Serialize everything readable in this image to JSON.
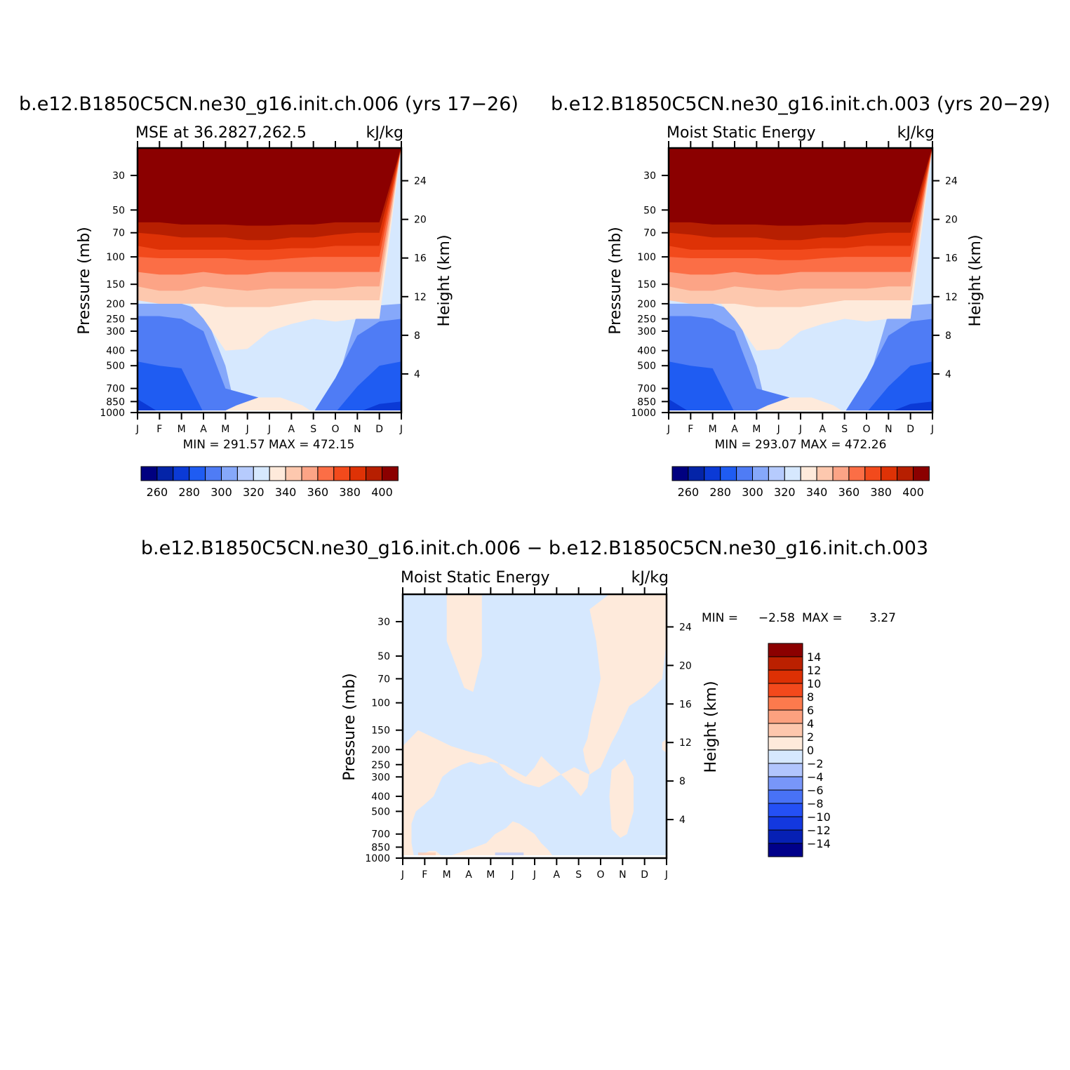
{
  "colors": {
    "levels": [
      "#000080",
      "#0424a8",
      "#0b3ad6",
      "#1f5cf2",
      "#4f7cf5",
      "#86a8fa",
      "#b6cbfd",
      "#d6e8fe",
      "#feeadb",
      "#fdc8ae",
      "#fca486",
      "#fb6e46",
      "#f24a1c",
      "#de3206",
      "#b71f01",
      "#8b0000"
    ],
    "diff": [
      "#00008a",
      "#0620b4",
      "#1338df",
      "#2450f5",
      "#4872f6",
      "#7896f9",
      "#b1c5fd",
      "#d6e8fe",
      "#feeadb",
      "#fdc7ad",
      "#fca17f",
      "#fc7a4d",
      "#f3491c",
      "#dd3004",
      "#bb2000",
      "#8b0000"
    ]
  },
  "chart_data": [
    {
      "id": "panel1",
      "type": "contour",
      "title": "b.e12.B1850C5CN.ne30_g16.init.ch.006 (yrs 17−26)",
      "subtitle_left": "MSE at 36.2827,262.5",
      "subtitle_right": "kJ/kg",
      "ylabel": "Pressure (mb)",
      "ylabel_right": "Height (km)",
      "x_ticks": [
        "J",
        "F",
        "M",
        "A",
        "M",
        "J",
        "J",
        "A",
        "S",
        "O",
        "N",
        "D",
        "J"
      ],
      "y_ticks": [
        "30",
        "50",
        "70",
        "100",
        "150",
        "200",
        "250",
        "300",
        "400",
        "500",
        "700",
        "850",
        "1000"
      ],
      "y_ticks_right": [
        "24",
        "20",
        "16",
        "12",
        "8",
        "4"
      ],
      "stats": "MIN = 291.57 MAX = 472.15",
      "colorbar_labels": [
        "260",
        "280",
        "300",
        "320",
        "340",
        "360",
        "380",
        "400"
      ],
      "level_ceilings": [
        [
          7,
          100,
          100,
          100,
          100,
          100,
          80,
          80,
          100,
          100,
          100,
          100,
          100
        ],
        [
          8,
          125,
          125,
          175,
          250,
          400,
          390,
          300,
          270,
          250,
          260,
          250,
          250
        ],
        [
          9,
          190,
          200,
          200,
          200,
          210,
          210,
          210,
          200,
          190,
          190,
          190,
          190
        ],
        [
          10,
          155,
          165,
          165,
          155,
          160,
          165,
          160,
          160,
          160,
          160,
          155,
          155
        ],
        [
          11,
          125,
          130,
          130,
          125,
          130,
          130,
          125,
          125,
          125,
          125,
          125,
          125
        ],
        [
          12,
          100,
          102,
          102,
          102,
          102,
          105,
          105,
          102,
          100,
          100,
          100,
          100
        ],
        [
          13,
          85,
          90,
          90,
          90,
          90,
          90,
          90,
          88,
          88,
          85,
          85,
          85
        ],
        [
          14,
          70,
          72,
          75,
          75,
          75,
          78,
          78,
          75,
          75,
          72,
          70,
          70
        ],
        [
          15,
          60,
          60,
          62,
          62,
          62,
          63,
          63,
          62,
          62,
          60,
          60,
          60
        ]
      ],
      "low_boundaries": [
        {
          "level": 3,
          "months": [
            0,
            1,
            2,
            10,
            11,
            12
          ],
          "pressures": [
            820,
            1000,
            1000,
            1000,
            880,
            850
          ]
        },
        {
          "level": 4,
          "months": [
            0,
            1,
            2,
            3,
            9,
            10,
            11,
            12
          ],
          "pressures": [
            470,
            500,
            520,
            1000,
            1000,
            680,
            500,
            470
          ]
        },
        {
          "level": 5,
          "months": [
            0,
            1,
            2,
            3,
            4,
            8,
            9,
            10,
            11,
            12
          ],
          "pressures": [
            240,
            240,
            250,
            300,
            700,
            1000,
            600,
            320,
            260,
            250
          ]
        },
        {
          "level": 6,
          "months": [
            0,
            1,
            2,
            3,
            4,
            4.5,
            8.5,
            9,
            10,
            11,
            12
          ],
          "pressures": [
            200,
            200,
            200,
            220,
            500,
            1000,
            1000,
            700,
            230,
            205,
            200
          ]
        }
      ],
      "warm_blob": {
        "level": 8,
        "months": [
          3.8,
          4.5,
          5.5,
          6.5,
          7.5,
          8
        ],
        "pressures": [
          1000,
          900,
          800,
          800,
          900,
          1000
        ]
      }
    },
    {
      "id": "panel2",
      "type": "contour",
      "title": "b.e12.B1850C5CN.ne30_g16.init.ch.003 (yrs 20−29)",
      "subtitle_left": "Moist Static Energy",
      "subtitle_right": "kJ/kg",
      "ylabel": "Pressure (mb)",
      "ylabel_right": "Height (km)",
      "x_ticks": [
        "J",
        "F",
        "M",
        "A",
        "M",
        "J",
        "J",
        "A",
        "S",
        "O",
        "N",
        "D",
        "J"
      ],
      "y_ticks": [
        "30",
        "50",
        "70",
        "100",
        "150",
        "200",
        "250",
        "300",
        "400",
        "500",
        "700",
        "850",
        "1000"
      ],
      "y_ticks_right": [
        "24",
        "20",
        "16",
        "12",
        "8",
        "4"
      ],
      "stats": "MIN = 293.07 MAX = 472.26",
      "colorbar_labels": [
        "260",
        "280",
        "300",
        "320",
        "340",
        "360",
        "380",
        "400"
      ],
      "level_ceilings": [
        [
          7,
          100,
          100,
          100,
          100,
          100,
          80,
          80,
          100,
          100,
          100,
          100,
          100
        ],
        [
          8,
          125,
          125,
          175,
          250,
          400,
          390,
          300,
          270,
          250,
          260,
          250,
          250
        ],
        [
          9,
          190,
          200,
          200,
          200,
          210,
          210,
          210,
          200,
          190,
          190,
          190,
          190
        ],
        [
          10,
          155,
          165,
          165,
          155,
          160,
          165,
          160,
          160,
          160,
          160,
          155,
          155
        ],
        [
          11,
          125,
          130,
          130,
          125,
          130,
          130,
          125,
          125,
          125,
          125,
          125,
          125
        ],
        [
          12,
          100,
          102,
          102,
          102,
          102,
          105,
          105,
          102,
          100,
          100,
          100,
          100
        ],
        [
          13,
          85,
          90,
          90,
          90,
          90,
          90,
          90,
          88,
          88,
          85,
          85,
          85
        ],
        [
          14,
          70,
          72,
          75,
          75,
          75,
          78,
          78,
          75,
          75,
          72,
          70,
          70
        ],
        [
          15,
          60,
          60,
          62,
          62,
          62,
          63,
          63,
          62,
          62,
          60,
          60,
          60
        ]
      ],
      "low_boundaries": [
        {
          "level": 3,
          "months": [
            0,
            1,
            2,
            10,
            11,
            12
          ],
          "pressures": [
            820,
            1000,
            1000,
            1000,
            880,
            850
          ]
        },
        {
          "level": 4,
          "months": [
            0,
            1,
            2,
            3,
            9,
            10,
            11,
            12
          ],
          "pressures": [
            470,
            500,
            520,
            1000,
            1000,
            680,
            500,
            470
          ]
        },
        {
          "level": 5,
          "months": [
            0,
            1,
            2,
            3,
            4,
            8,
            9,
            10,
            11,
            12
          ],
          "pressures": [
            240,
            240,
            250,
            300,
            700,
            1000,
            600,
            320,
            260,
            250
          ]
        },
        {
          "level": 6,
          "months": [
            0,
            1,
            2,
            3,
            4,
            4.5,
            8.5,
            9,
            10,
            11,
            12
          ],
          "pressures": [
            200,
            200,
            200,
            220,
            500,
            1000,
            1000,
            700,
            230,
            205,
            200
          ]
        }
      ],
      "warm_blob": {
        "level": 8,
        "months": [
          3.8,
          4.5,
          5.5,
          6.5,
          7.5,
          8
        ],
        "pressures": [
          1000,
          900,
          800,
          800,
          900,
          1000
        ]
      }
    },
    {
      "id": "panel3",
      "type": "contour",
      "title": "b.e12.B1850C5CN.ne30_g16.init.ch.006 − b.e12.B1850C5CN.ne30_g16.init.ch.003",
      "subtitle_left": "Moist Static Energy",
      "subtitle_right": "kJ/kg",
      "ylabel": "Pressure (mb)",
      "ylabel_right": "Height (km)",
      "x_ticks": [
        "J",
        "F",
        "M",
        "A",
        "M",
        "J",
        "J",
        "A",
        "S",
        "O",
        "N",
        "D",
        "J"
      ],
      "y_ticks": [
        "30",
        "50",
        "70",
        "100",
        "150",
        "200",
        "250",
        "300",
        "400",
        "500",
        "700",
        "850",
        "1000"
      ],
      "y_ticks_right": [
        "24",
        "20",
        "16",
        "12",
        "8",
        "4"
      ],
      "stats_label_min": "MIN =",
      "stats_min": "−2.58",
      "stats_label_max": "MAX =",
      "stats_max": "3.27",
      "colorbar_labels": [
        "14",
        "12",
        "10",
        "8",
        "6",
        "4",
        "2",
        "0",
        "−2",
        "−4",
        "−6",
        "−8",
        "−10",
        "−12",
        "−14"
      ],
      "positive_regions": [
        {
          "months": [
            2,
            3.6,
            3.6,
            3.2,
            2.8,
            2
          ],
          "pressures": [
            20,
            20,
            50,
            85,
            80,
            40
          ]
        },
        {
          "months": [
            9.4,
            12,
            12,
            11.8,
            11,
            10.3,
            9.8,
            9.5,
            9.0,
            8.5,
            7.8,
            7.0,
            6.7,
            6.2,
            5.5,
            4.8,
            4.3,
            3.8,
            3.2,
            2.2,
            1.5,
            0.7,
            0,
            0,
            0.2,
            0.6,
            0.9,
            1.2,
            1.5,
            1.9,
            2.3,
            2.8,
            3.5,
            4.6,
            5.0,
            5.5,
            5.9,
            6.1,
            6.3,
            6.9,
            6.6,
            6.3,
            6.0,
            5.6,
            5.3,
            5.0,
            4.7,
            4.2,
            3.8,
            3.3,
            2.8,
            2.3,
            2.0,
            1.8,
            1.6,
            1.3,
            1.0,
            0.8,
            0.6,
            0.5,
            0.4,
            0.4,
            0.6,
            1.0,
            1.4,
            1.8,
            2.2,
            2.7,
            3.1,
            3.5,
            4.0,
            4.6,
            5.2,
            5.6,
            6.0,
            6.3,
            6.7,
            7.1,
            7.6,
            8.1,
            8.4,
            8.5,
            8.3,
            8.2,
            8.4,
            8.6,
            8.8,
            9.0,
            8.8,
            8.5
          ],
          "pressures": [
            20,
            20,
            40,
            70,
            90,
            105,
            150,
            180,
            260,
            290,
            260,
            300,
            320,
            350,
            330,
            290,
            240,
            220,
            210,
            190,
            170,
            150,
            190,
            1000,
            1000,
            1000,
            950,
            900,
            900,
            1000,
            1000,
            1000,
            1000,
            1000,
            1000,
            1000,
            1000,
            1000,
            1000,
            1000,
            880,
            800,
            700,
            640,
            600,
            580,
            640,
            700,
            800,
            850,
            900,
            950,
            1000,
            1000,
            1000,
            1000,
            1000,
            1000,
            1000,
            960,
            800,
            600,
            500,
            450,
            400,
            300,
            270,
            250,
            240,
            250,
            240,
            250,
            280,
            300,
            260,
            220,
            250,
            280,
            330,
            400,
            350,
            280,
            240,
            200,
            170,
            120,
            95,
            70,
            40,
            25
          ]
        },
        {
          "months": [
            9.5,
            10.1,
            10.5,
            10.5,
            10.2,
            9.9,
            9.5,
            9.4
          ],
          "pressures": [
            270,
            230,
            300,
            500,
            700,
            740,
            650,
            400
          ]
        },
        {
          "months": [
            11.8,
            12,
            12,
            11.8
          ],
          "pressures": [
            180,
            170,
            210,
            200
          ]
        }
      ],
      "negative_patches": [
        {
          "months": [
            4.2,
            5.5,
            5.5,
            4.2
          ],
          "pressures": [
            920,
            920,
            1000,
            1000
          ]
        },
        {
          "months": [
            10.0,
            11.6,
            11.6,
            10.0
          ],
          "pressures": [
            960,
            960,
            1000,
            1000
          ]
        }
      ],
      "positive_patches": [
        {
          "months": [
            0.7,
            1.5,
            1.5,
            0.7
          ],
          "pressures": [
            920,
            920,
            1000,
            1000
          ]
        }
      ]
    }
  ]
}
